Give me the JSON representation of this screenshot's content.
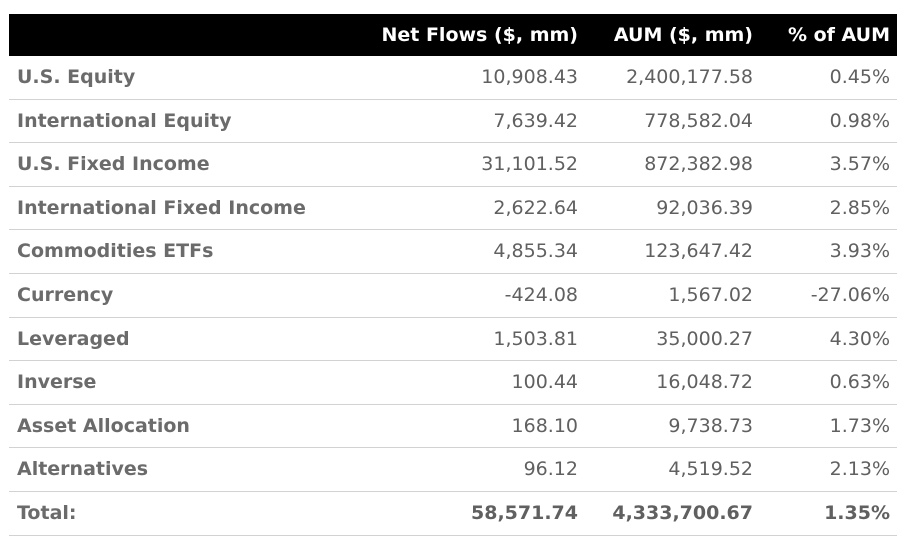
{
  "table": {
    "headers": {
      "category": "",
      "net_flows": "Net Flows ($, mm)",
      "aum": "AUM ($, mm)",
      "pct_aum": "% of AUM"
    },
    "rows": [
      {
        "label": "U.S. Equity",
        "net_flows": "10,908.43",
        "aum": "2,400,177.58",
        "pct": "0.45%"
      },
      {
        "label": "International Equity",
        "net_flows": "7,639.42",
        "aum": "778,582.04",
        "pct": "0.98%"
      },
      {
        "label": "U.S. Fixed Income",
        "net_flows": "31,101.52",
        "aum": "872,382.98",
        "pct": "3.57%"
      },
      {
        "label": "International Fixed Income",
        "net_flows": "2,622.64",
        "aum": "92,036.39",
        "pct": "2.85%"
      },
      {
        "label": "Commodities ETFs",
        "net_flows": "4,855.34",
        "aum": "123,647.42",
        "pct": "3.93%"
      },
      {
        "label": "Currency",
        "net_flows": "-424.08",
        "aum": "1,567.02",
        "pct": "-27.06%"
      },
      {
        "label": "Leveraged",
        "net_flows": "1,503.81",
        "aum": "35,000.27",
        "pct": "4.30%"
      },
      {
        "label": "Inverse",
        "net_flows": "100.44",
        "aum": "16,048.72",
        "pct": "0.63%"
      },
      {
        "label": "Asset Allocation",
        "net_flows": "168.10",
        "aum": "9,738.73",
        "pct": "1.73%"
      },
      {
        "label": "Alternatives",
        "net_flows": "96.12",
        "aum": "4,519.52",
        "pct": "2.13%"
      }
    ],
    "total": {
      "label": "Total:",
      "net_flows": "58,571.74",
      "aum": "4,333,700.67",
      "pct": "1.35%"
    }
  }
}
